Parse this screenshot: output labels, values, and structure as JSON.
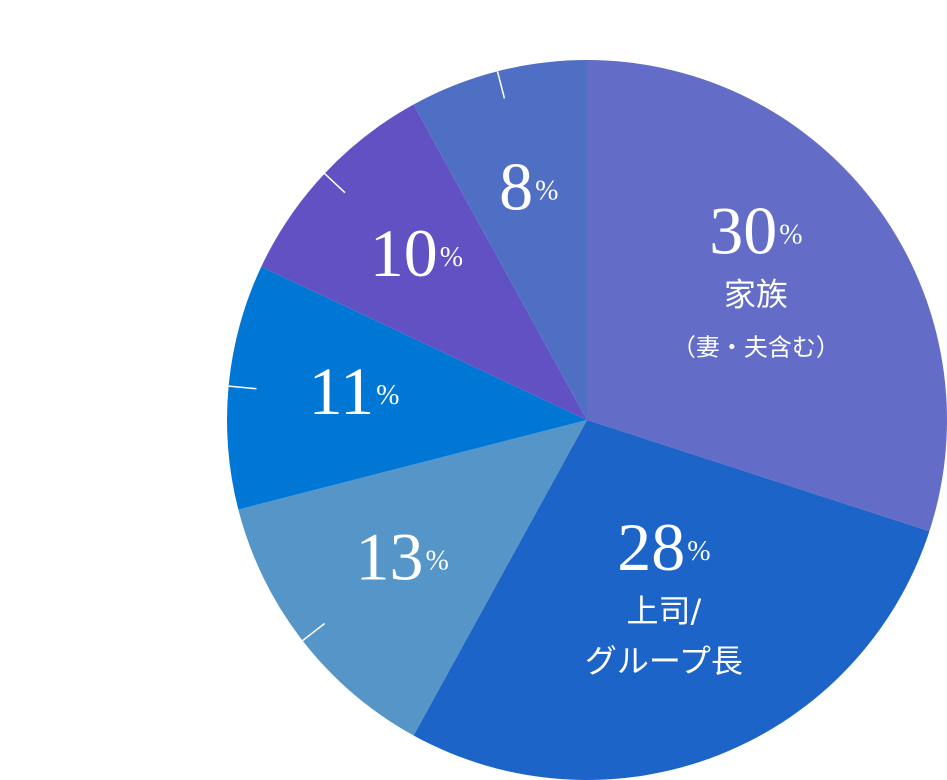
{
  "chart_data": {
    "type": "pie",
    "categories": [
      "家族\n（妻・夫含む）",
      "上司/\nグループ長",
      null,
      null,
      null,
      null
    ],
    "values": [
      30,
      28,
      13,
      11,
      10,
      8
    ],
    "value_labels": [
      "30%",
      "28%",
      "13%",
      "11%",
      "10%",
      "8%"
    ],
    "colors": [
      "#636dc8",
      "#1c64c8",
      "#5595c8",
      "#0077d5",
      "#6151c3",
      "#4f6fc4"
    ]
  }
}
